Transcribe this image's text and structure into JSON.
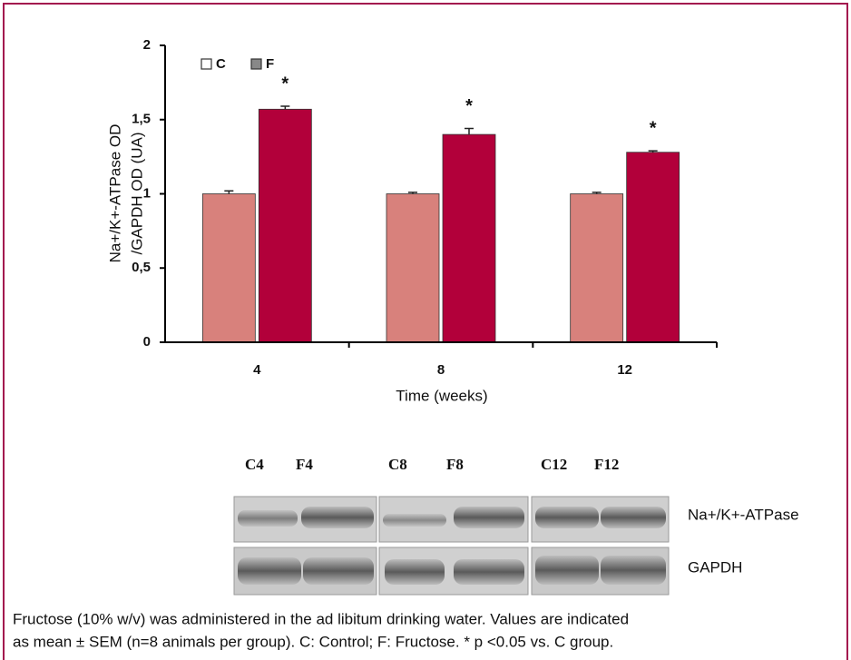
{
  "chart_data": {
    "type": "bar",
    "categories": [
      "4",
      "8",
      "12"
    ],
    "series": [
      {
        "name": "C",
        "color": "#d8817c",
        "values": [
          1.0,
          1.0,
          1.0
        ],
        "errors": [
          0.02,
          0.01,
          0.01
        ]
      },
      {
        "name": "F",
        "color": "#b2003a",
        "values": [
          1.57,
          1.4,
          1.28
        ],
        "errors": [
          0.02,
          0.04,
          0.01
        ]
      }
    ],
    "annotations": [
      "*",
      "*",
      "*"
    ],
    "ylabel": [
      "Na+/K+-ATPase OD",
      "/GAPDH OD (UA)"
    ],
    "xlabel": "Time (weeks)",
    "ylim": [
      0,
      2
    ],
    "yticks": [
      0,
      {
        "value": 0.5,
        "label": "0,5"
      },
      1,
      {
        "value": 1.5,
        "label": "1,5"
      },
      2
    ],
    "legend": "top-left"
  },
  "blot": {
    "lanes": [
      "C4",
      "F4",
      "C8",
      "F8",
      "C12",
      "F12"
    ],
    "rows": [
      "Na+/K+-ATPase",
      "GAPDH"
    ]
  },
  "caption": [
    "Fructose (10% w/v) was administered in the ad libitum drinking water. Values are indicated",
    "as mean ± SEM (n=8 animals per group). C: Control; F: Fructose. * p <0.05 vs. C group."
  ]
}
